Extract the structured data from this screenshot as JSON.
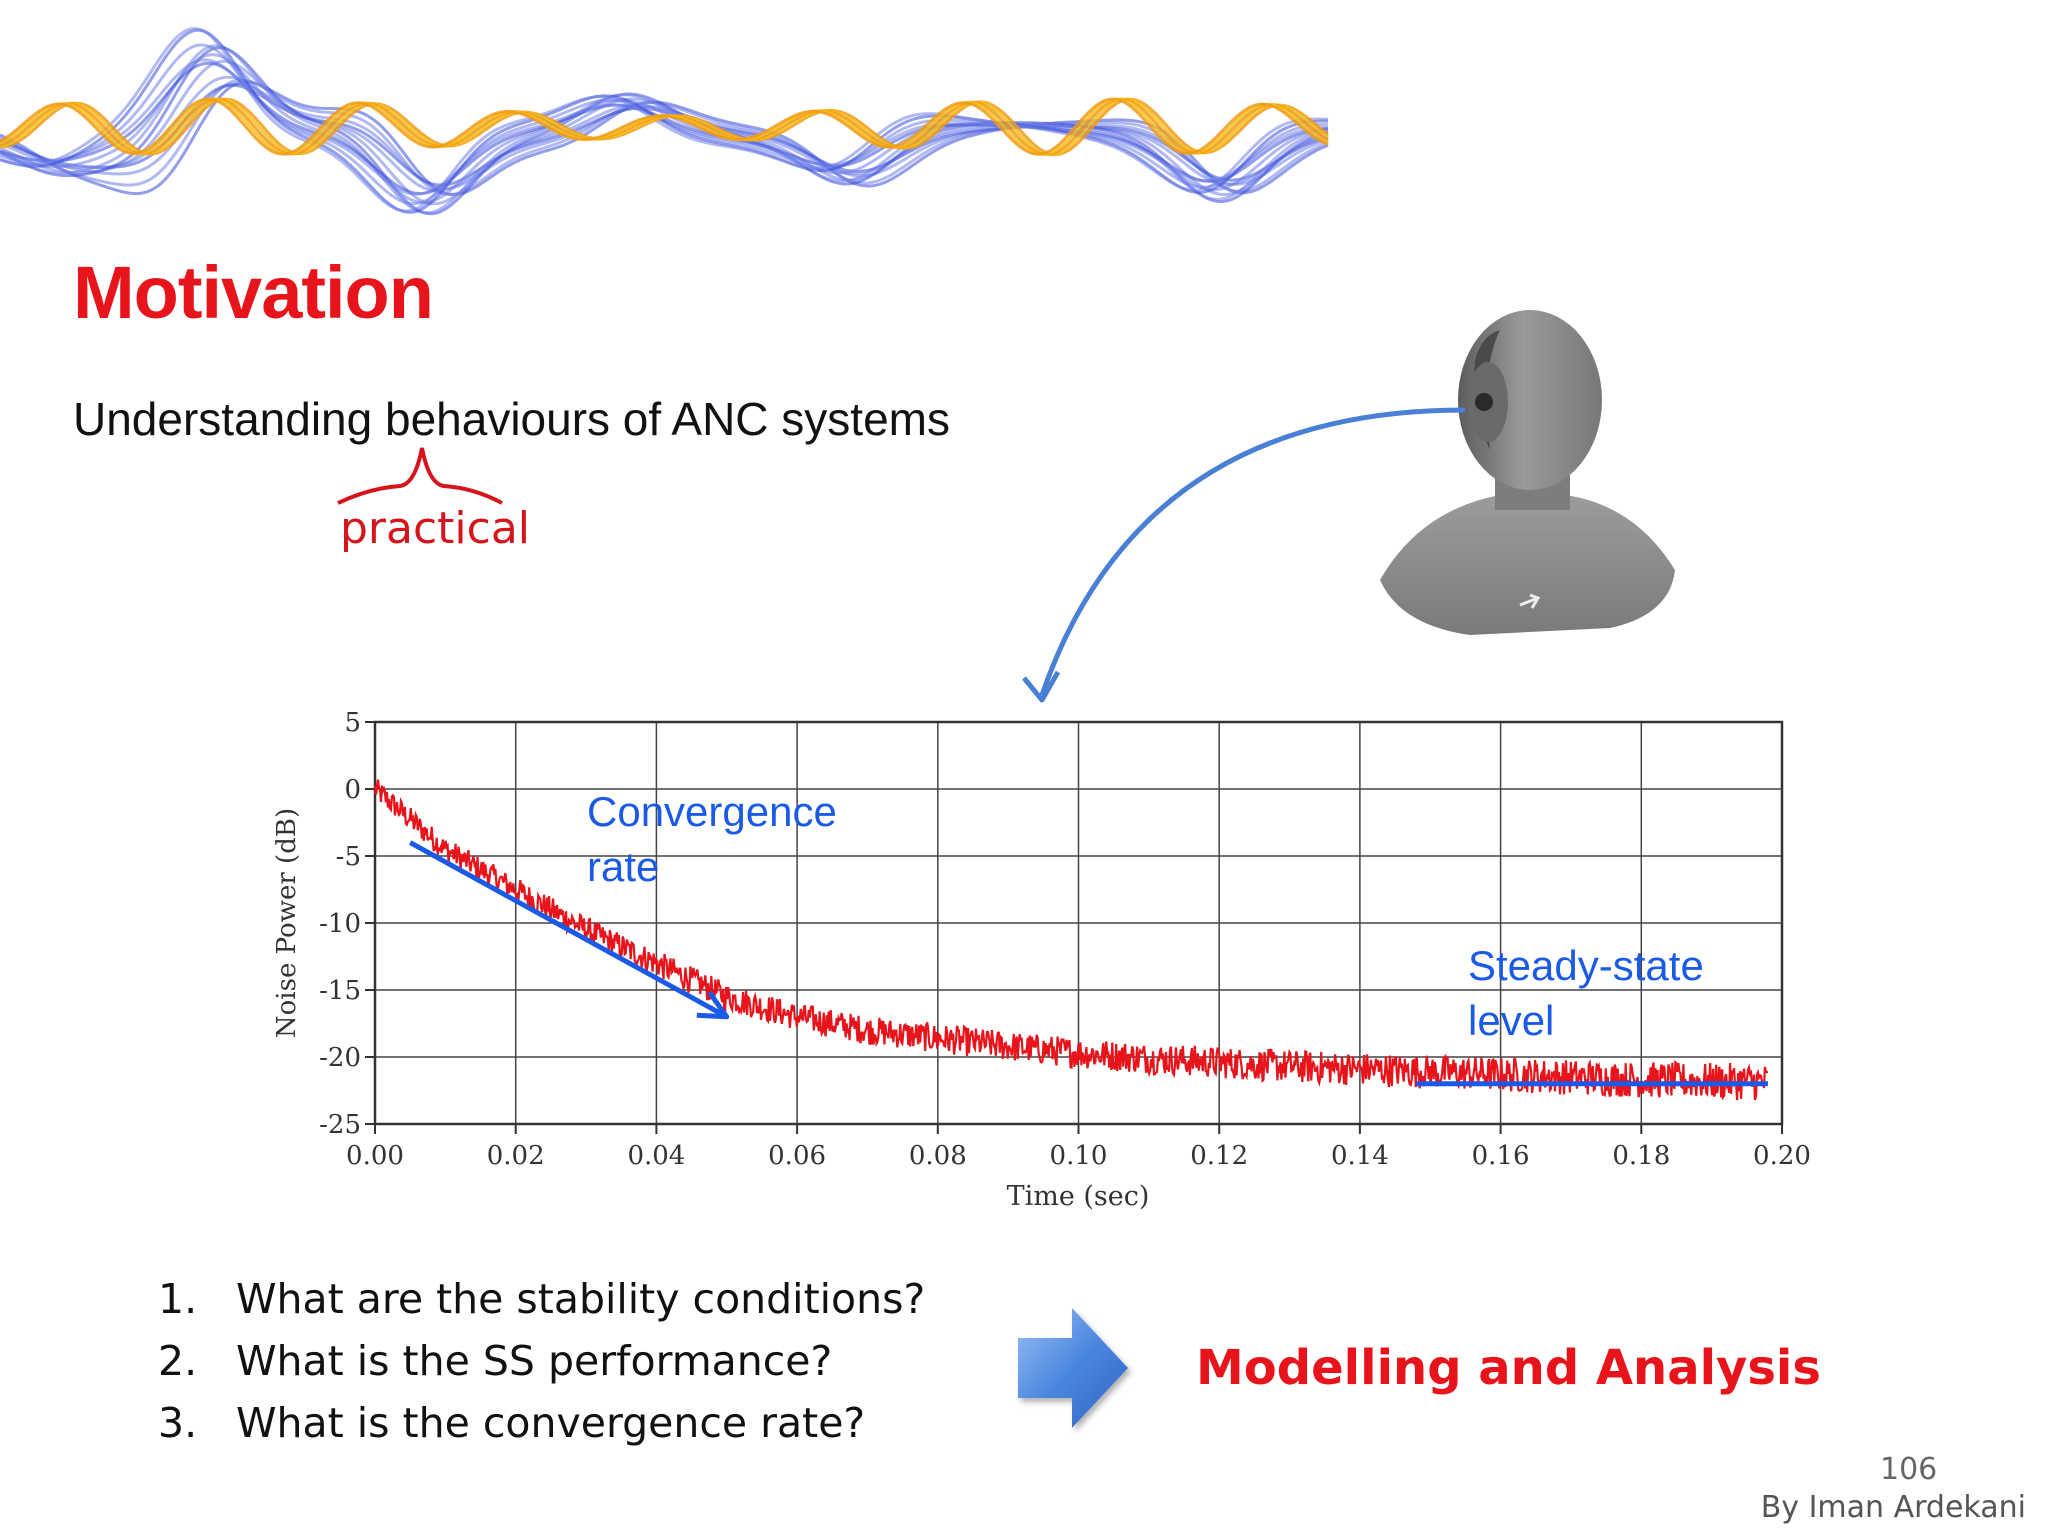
{
  "slide": {
    "title": "Motivation",
    "subtitle": "Understanding behaviours of ANC systems",
    "annotation": "practical",
    "questions": [
      {
        "num": "1.",
        "text": "What are the stability conditions?"
      },
      {
        "num": "2.",
        "text": "What is the SS performance?"
      },
      {
        "num": "3.",
        "text": "What is the convergence rate?"
      }
    ],
    "conclusion": "Modelling and Analysis",
    "page_number": "106",
    "author": "By Iman Ardekani"
  },
  "colors": {
    "title_red": "#e8141c",
    "annotation_blue": "#1a5ae6",
    "curve_red": "#e8141c",
    "arrow_blue": "#4a7fd6"
  },
  "icons": [
    "sound-wave-banner",
    "dummy-head-image",
    "curved-arrow-icon",
    "right-arrow-icon"
  ],
  "chart_data": {
    "type": "line",
    "xlabel": "Time (sec)",
    "ylabel": "Noise Power (dB)",
    "xlim": [
      0,
      0.2
    ],
    "ylim": [
      -25,
      5
    ],
    "x_ticks": [
      "0.00",
      "0.02",
      "0.04",
      "0.06",
      "0.08",
      "0.10",
      "0.12",
      "0.14",
      "0.16",
      "0.18",
      "0.20"
    ],
    "y_ticks": [
      "5",
      "0",
      "-5",
      "-10",
      "-15",
      "-20",
      "-25"
    ],
    "grid": true,
    "series": [
      {
        "x": [
          0,
          0.01,
          0.02,
          0.03,
          0.04,
          0.05,
          0.06,
          0.07,
          0.08,
          0.09,
          0.1,
          0.11,
          0.12,
          0.13,
          0.14,
          0.15,
          0.16,
          0.17,
          0.18,
          0.19,
          0.2
        ],
        "y": [
          0,
          -4.5,
          -7.5,
          -10.5,
          -13,
          -15.5,
          -17,
          -18,
          -18.6,
          -19.2,
          -19.7,
          -20.1,
          -20.4,
          -20.7,
          -20.9,
          -21.1,
          -21.3,
          -21.5,
          -21.7,
          -21.8,
          -21.9
        ]
      }
    ],
    "annotations": [
      {
        "text": [
          "Convergence",
          "rate"
        ],
        "arrow_from": [
          0.005,
          -4
        ],
        "arrow_to": [
          0.05,
          -17
        ]
      },
      {
        "text": [
          "Steady-state",
          "level"
        ],
        "line_from": [
          0.148,
          -22
        ],
        "line_to": [
          0.198,
          -22
        ]
      }
    ]
  }
}
